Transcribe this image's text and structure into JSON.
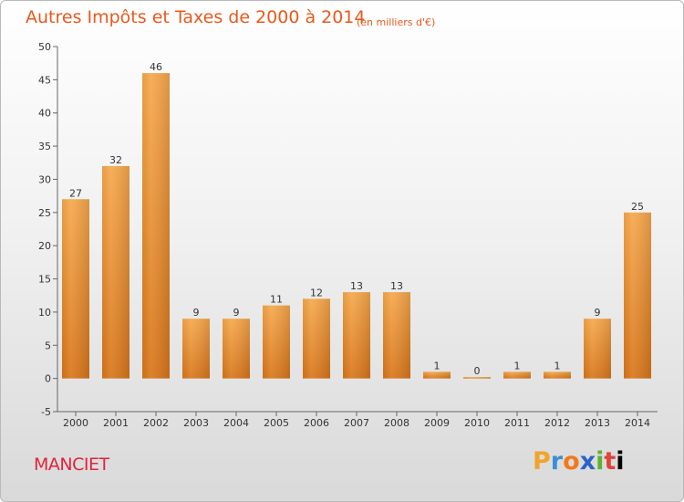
{
  "chart_data": {
    "type": "bar",
    "title": "Autres Impôts et Taxes de 2000 à 2014",
    "subtitle": "(en milliers d'€)",
    "categories": [
      "2000",
      "2001",
      "2002",
      "2003",
      "2004",
      "2005",
      "2006",
      "2007",
      "2008",
      "2009",
      "2010",
      "2011",
      "2012",
      "2013",
      "2014"
    ],
    "values": [
      27,
      32,
      46,
      9,
      9,
      11,
      12,
      13,
      13,
      1,
      0,
      1,
      1,
      9,
      25
    ],
    "ylim": [
      -5,
      50
    ],
    "yticks": [
      -5,
      0,
      5,
      10,
      15,
      20,
      25,
      30,
      35,
      40,
      45,
      50
    ],
    "grid": false,
    "bar_color": "#f29a3d"
  },
  "footer": {
    "town": "MANCIET",
    "logo_letters": [
      "P",
      "r",
      "o",
      "x",
      "i",
      "t",
      "i"
    ]
  }
}
